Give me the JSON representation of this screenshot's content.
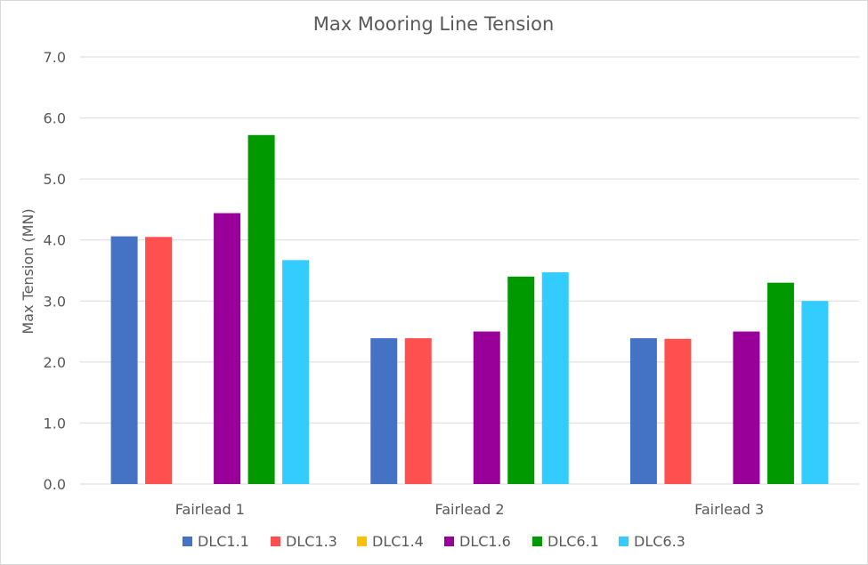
{
  "chart_data": {
    "type": "bar",
    "title": "Max Mooring Line Tension",
    "xlabel": "",
    "ylabel": "Max Tension (MN)",
    "ylim": [
      0,
      7
    ],
    "yticks": [
      "0.0",
      "1.0",
      "2.0",
      "3.0",
      "4.0",
      "5.0",
      "6.0",
      "7.0"
    ],
    "grid": true,
    "legend_position": "bottom",
    "categories": [
      "Fairlead 1",
      "Fairlead 2",
      "Fairlead 3"
    ],
    "series": [
      {
        "name": "DLC1.1",
        "color": "#4472C4",
        "values": [
          4.06,
          2.39,
          2.39
        ]
      },
      {
        "name": "DLC1.3",
        "color": "#FF5050",
        "values": [
          4.05,
          2.39,
          2.38
        ]
      },
      {
        "name": "DLC1.4",
        "color": "#FFC000",
        "values": [
          0,
          0,
          0
        ]
      },
      {
        "name": "DLC1.6",
        "color": "#990099",
        "values": [
          4.44,
          2.5,
          2.5
        ]
      },
      {
        "name": "DLC6.1",
        "color": "#009900",
        "values": [
          5.72,
          3.4,
          3.3
        ]
      },
      {
        "name": "DLC6.3",
        "color": "#33CCFF",
        "values": [
          3.67,
          3.47,
          3.0
        ]
      }
    ]
  }
}
